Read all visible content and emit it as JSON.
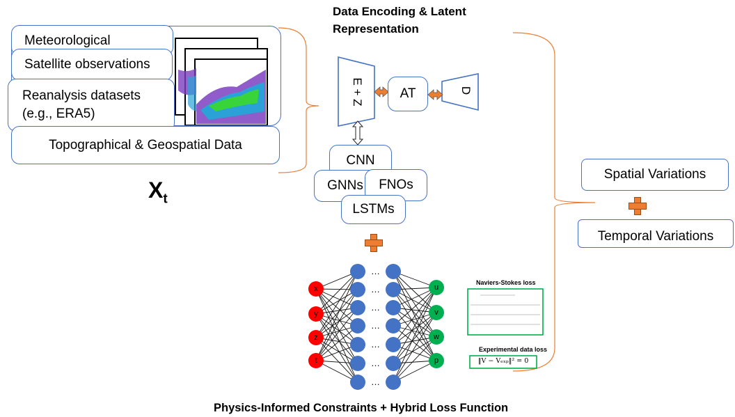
{
  "headings": {
    "encoding_title_line1": "Data Encoding & Latent",
    "encoding_title_line2": "Representation",
    "bottom_title": "Physics-Informed Constraints + Hybrid Loss Function"
  },
  "inputs": {
    "meteorological": "Meteorological",
    "satellite": "Satellite observations",
    "reanalysis_line1": "Reanalysis datasets",
    "reanalysis_line2": "(e.g., ERA5)",
    "topographical": "Topographical & Geospatial Data",
    "symbol_main": "X",
    "symbol_sub": "t"
  },
  "encoder": {
    "encoder_label": "E + Z",
    "attention_label": "AT",
    "decoder_label": "D"
  },
  "models": {
    "cnn": "CNN",
    "gnns": "GNNs",
    "fnos": "FNOs",
    "lstms": "LSTMs"
  },
  "pinn": {
    "inputs": [
      "x",
      "y",
      "z",
      "t"
    ],
    "outputs": [
      "u",
      "v",
      "w",
      "p"
    ],
    "ellipsis": "…",
    "ns_loss_title": "Naviers-Stokes loss",
    "exp_loss_title": "Experimental data loss",
    "exp_loss_formula": "‖V − Vₑₓₚ‖² = 0"
  },
  "outputs": {
    "spatial": "Spatial Variations",
    "temporal": "Temporal Variations"
  },
  "colors": {
    "box_border": "#4472c4",
    "bracket": "#ed7d31",
    "plus": "#ed7d31",
    "input_node": "#ff0000",
    "hidden_node": "#4472c4",
    "output_node": "#00b050",
    "loss_border": "#00b050"
  }
}
